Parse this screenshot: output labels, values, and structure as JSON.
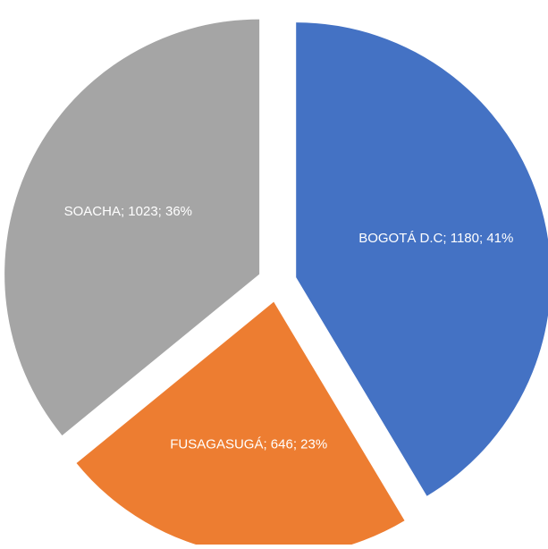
{
  "chart_data": {
    "type": "pie",
    "categories": [
      "BOGOTÁ D.C",
      "FUSAGASUGÁ",
      "SOACHA"
    ],
    "values": [
      1180,
      646,
      1023
    ],
    "value_labels": [
      "BOGOTÁ D.C; 1180; 41%",
      "FUSAGASUGÁ; 646; 23%",
      "SOACHA; 1023; 36%"
    ],
    "colors": [
      "#4472c4",
      "#ed7d31",
      "#a5a5a5"
    ]
  }
}
